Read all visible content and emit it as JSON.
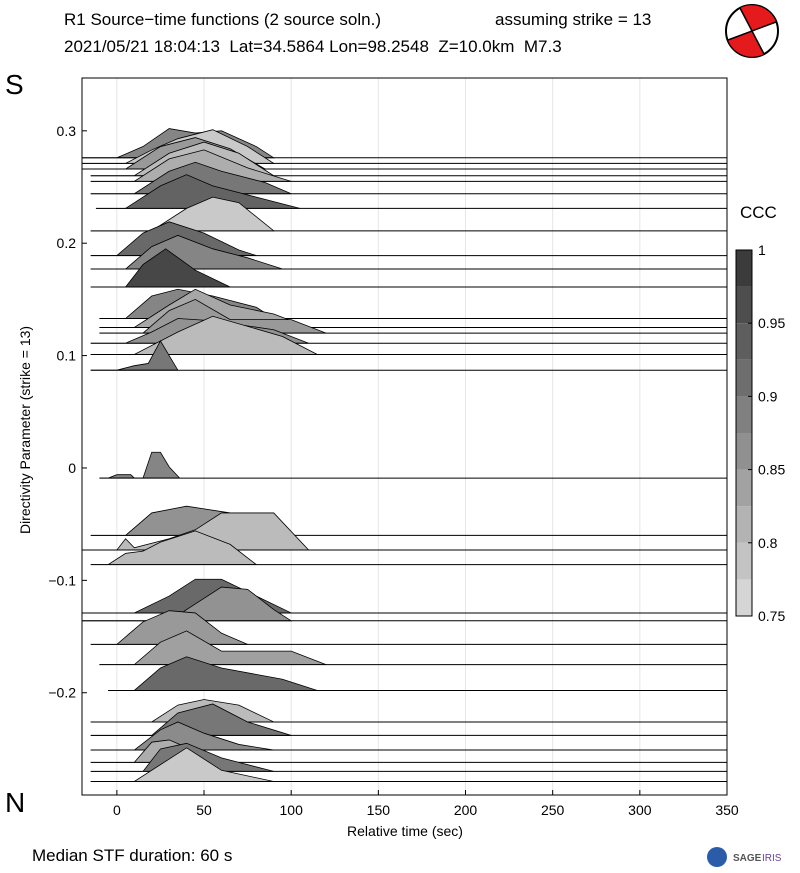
{
  "chart_data": {
    "type": "ridgeline",
    "title": "R1 Source−time functions (2 source soln.)",
    "title_right": "assuming strike = 13",
    "subtitle": "2021/05/21 18:04:13  Lat=34.5864 Lon=98.2548  Z=10.0km  M7.3",
    "top_label": "S",
    "bottom_label": "N",
    "xlabel": "Relative time (sec)",
    "ylabel": "Directivity Parameter (strike = 13)",
    "footer": "Median STF duration: 60 s",
    "logo": [
      "SAGE",
      "IRIS"
    ],
    "xlim": [
      -20,
      350
    ],
    "xticks": [
      0,
      50,
      100,
      150,
      200,
      250,
      300,
      350
    ],
    "ylim": [
      -0.291,
      0.347
    ],
    "yticks": [
      0.3,
      0.2,
      0.1,
      0,
      {
        "value": -0.1,
        "label": "−0.1"
      },
      {
        "value": -0.2,
        "label": "−0.2"
      }
    ],
    "grid": true,
    "colorbar": {
      "label": "CCC",
      "lim": [
        0.75,
        1
      ],
      "ticks": [
        1,
        0.95,
        0.9,
        0.85,
        0.8,
        0.75
      ]
    },
    "traces": [
      {
        "p": 0.276,
        "ccc": 0.88,
        "x": [
          -20,
          0,
          15,
          30,
          45,
          60,
          80,
          90
        ],
        "values": [
          0,
          0,
          0.01,
          0.026,
          0.022,
          0.024,
          0.01,
          0
        ]
      },
      {
        "p": 0.271,
        "ccc": 0.78,
        "x": [
          -20,
          5,
          20,
          35,
          55,
          75,
          90
        ],
        "values": [
          0,
          0,
          0.012,
          0.022,
          0.03,
          0.015,
          0
        ]
      },
      {
        "p": 0.266,
        "ccc": 0.85,
        "x": [
          -20,
          5,
          25,
          45,
          65,
          85
        ],
        "values": [
          0,
          0,
          0.02,
          0.028,
          0.018,
          0
        ]
      },
      {
        "p": 0.26,
        "ccc": 0.8,
        "x": [
          -15,
          10,
          30,
          50,
          70,
          90
        ],
        "values": [
          0,
          0,
          0.02,
          0.03,
          0.02,
          0
        ]
      },
      {
        "p": 0.255,
        "ccc": 0.82,
        "x": [
          -15,
          10,
          30,
          50,
          75,
          100
        ],
        "values": [
          0,
          0,
          0.02,
          0.028,
          0.012,
          0
        ]
      },
      {
        "p": 0.244,
        "ccc": 0.9,
        "x": [
          -15,
          10,
          30,
          45,
          60,
          85,
          100
        ],
        "values": [
          0,
          0,
          0.02,
          0.028,
          0.02,
          0.01,
          0
        ]
      },
      {
        "p": 0.231,
        "ccc": 0.93,
        "x": [
          -12,
          5,
          25,
          40,
          55,
          80,
          105
        ],
        "values": [
          0,
          0,
          0.02,
          0.03,
          0.02,
          0.01,
          0
        ]
      },
      {
        "p": 0.211,
        "ccc": 0.78,
        "x": [
          -15,
          20,
          40,
          55,
          70,
          90
        ],
        "values": [
          0,
          0,
          0.02,
          0.03,
          0.025,
          0
        ]
      },
      {
        "p": 0.189,
        "ccc": 0.92,
        "x": [
          -15,
          0,
          15,
          30,
          50,
          70,
          80
        ],
        "values": [
          0,
          0,
          0.02,
          0.03,
          0.02,
          0.005,
          0
        ]
      },
      {
        "p": 0.177,
        "ccc": 0.88,
        "x": [
          -15,
          5,
          20,
          35,
          55,
          75,
          95
        ],
        "values": [
          0,
          0,
          0.02,
          0.03,
          0.018,
          0.01,
          0
        ]
      },
      {
        "p": 0.161,
        "ccc": 0.97,
        "x": [
          -15,
          5,
          15,
          28,
          45,
          65
        ],
        "values": [
          0,
          0,
          0.02,
          0.034,
          0.015,
          0
        ]
      },
      {
        "p": 0.133,
        "ccc": 0.88,
        "x": [
          -10,
          5,
          20,
          35,
          55,
          80,
          90
        ],
        "values": [
          0,
          0,
          0.02,
          0.026,
          0.02,
          0.01,
          0
        ]
      },
      {
        "p": 0.125,
        "ccc": 0.83,
        "x": [
          -10,
          10,
          30,
          45,
          65,
          90,
          110
        ],
        "values": [
          0,
          0,
          0.02,
          0.034,
          0.02,
          0.012,
          0
        ]
      },
      {
        "p": 0.12,
        "ccc": 0.85,
        "x": [
          -10,
          15,
          30,
          45,
          65,
          100,
          120
        ],
        "values": [
          0,
          0,
          0.02,
          0.03,
          0.012,
          0.012,
          0
        ]
      },
      {
        "p": 0.111,
        "ccc": 0.86,
        "x": [
          -15,
          5,
          20,
          35,
          55,
          90,
          110
        ],
        "values": [
          0,
          0,
          0.01,
          0.022,
          0.02,
          0.012,
          0
        ]
      },
      {
        "p": 0.101,
        "ccc": 0.8,
        "x": [
          -15,
          10,
          35,
          55,
          95,
          115
        ],
        "values": [
          0,
          0,
          0.02,
          0.034,
          0.016,
          0
        ]
      },
      {
        "p": 0.087,
        "ccc": 0.9,
        "x": [
          -15,
          0,
          10,
          18,
          25,
          35
        ],
        "values": [
          0,
          0,
          0.004,
          0.006,
          0.026,
          0
        ]
      },
      {
        "p": -0.009,
        "ccc": 0.88,
        "x": [
          -10,
          -5,
          0,
          8,
          10,
          15,
          20,
          25,
          30,
          36
        ],
        "values": [
          0,
          0,
          0.003,
          0.003,
          0,
          0,
          0.023,
          0.023,
          0.01,
          0
        ]
      },
      {
        "p": -0.06,
        "ccc": 0.86,
        "x": [
          -15,
          5,
          20,
          40,
          65,
          85
        ],
        "values": [
          0,
          0,
          0.02,
          0.026,
          0.02,
          0
        ]
      },
      {
        "p": -0.073,
        "ccc": 0.8,
        "x": [
          -20,
          0,
          5,
          10,
          30,
          45,
          60,
          90,
          110
        ],
        "values": [
          0,
          0,
          0.01,
          0.002,
          0.01,
          0.018,
          0.033,
          0.033,
          0
        ]
      },
      {
        "p": -0.086,
        "ccc": 0.8,
        "x": [
          -15,
          -5,
          5,
          15,
          25,
          45,
          65,
          80
        ],
        "values": [
          0,
          0,
          0.01,
          0.012,
          0.02,
          0.03,
          0.018,
          0
        ]
      },
      {
        "p": -0.129,
        "ccc": 0.92,
        "x": [
          -20,
          10,
          30,
          45,
          60,
          80,
          100
        ],
        "values": [
          0,
          0,
          0.015,
          0.03,
          0.03,
          0.015,
          0
        ]
      },
      {
        "p": -0.136,
        "ccc": 0.86,
        "x": [
          -20,
          30,
          45,
          60,
          75,
          90,
          100
        ],
        "values": [
          0,
          0,
          0.015,
          0.03,
          0.028,
          0.01,
          0
        ]
      },
      {
        "p": -0.157,
        "ccc": 0.85,
        "x": [
          -15,
          0,
          15,
          30,
          45,
          60,
          75
        ],
        "values": [
          0,
          0,
          0.02,
          0.03,
          0.028,
          0.01,
          0
        ]
      },
      {
        "p": -0.175,
        "ccc": 0.84,
        "x": [
          -10,
          10,
          25,
          40,
          60,
          100,
          120
        ],
        "values": [
          0,
          0,
          0.02,
          0.03,
          0.012,
          0.012,
          0
        ]
      },
      {
        "p": -0.198,
        "ccc": 0.92,
        "x": [
          -5,
          10,
          25,
          40,
          60,
          95,
          115
        ],
        "values": [
          0,
          0,
          0.02,
          0.03,
          0.02,
          0.01,
          0
        ]
      },
      {
        "p": -0.226,
        "ccc": 0.8,
        "x": [
          -15,
          20,
          35,
          50,
          70,
          90
        ],
        "values": [
          0,
          0,
          0.015,
          0.02,
          0.015,
          0
        ]
      },
      {
        "p": -0.238,
        "ccc": 0.9,
        "x": [
          -15,
          20,
          35,
          55,
          75,
          100
        ],
        "values": [
          0,
          0,
          0.02,
          0.028,
          0.012,
          0
        ]
      },
      {
        "p": -0.251,
        "ccc": 0.87,
        "x": [
          -15,
          10,
          25,
          35,
          50,
          70,
          90
        ],
        "values": [
          0,
          0,
          0.018,
          0.025,
          0.015,
          0.005,
          0
        ]
      },
      {
        "p": -0.262,
        "ccc": 0.82,
        "x": [
          -15,
          10,
          20,
          30,
          45,
          65
        ],
        "values": [
          0,
          0,
          0.018,
          0.02,
          0.01,
          0
        ]
      },
      {
        "p": -0.27,
        "ccc": 0.9,
        "x": [
          -15,
          15,
          25,
          40,
          60,
          90
        ],
        "values": [
          0,
          0,
          0.02,
          0.025,
          0.012,
          0
        ]
      },
      {
        "p": -0.279,
        "ccc": 0.78,
        "x": [
          -15,
          10,
          30,
          40,
          60,
          90
        ],
        "values": [
          0,
          0,
          0.02,
          0.03,
          0.01,
          0
        ]
      }
    ]
  }
}
